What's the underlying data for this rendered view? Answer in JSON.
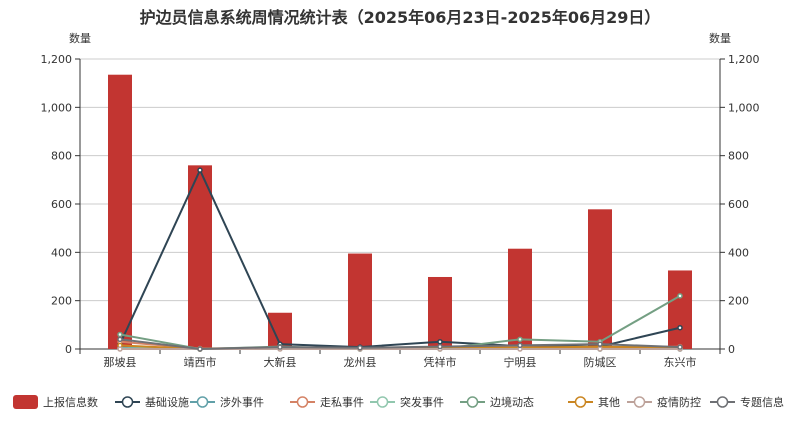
{
  "chart_data": {
    "type": "bar",
    "title": "护边员信息系统周情况统计表（2025年06月23日-2025年06月29日）",
    "ylabel_left": "数量",
    "ylabel_right": "数量",
    "ylim": [
      0,
      1200
    ],
    "yticks": [
      "0",
      "200",
      "400",
      "600",
      "800",
      "1,000",
      "1,200"
    ],
    "categories": [
      "那坡县",
      "靖西市",
      "大新县",
      "龙州县",
      "凭祥市",
      "宁明县",
      "防城区",
      "东兴市"
    ],
    "grid": true,
    "legend_position": "bottom",
    "series": [
      {
        "name": "上报信息数",
        "type": "bar",
        "color": "#c23531",
        "values": [
          1135,
          760,
          150,
          395,
          298,
          415,
          578,
          325
        ]
      },
      {
        "name": "基础设施",
        "type": "line",
        "color": "#2f4554",
        "values": [
          20,
          740,
          20,
          8,
          30,
          12,
          10,
          88
        ]
      },
      {
        "name": "涉外事件",
        "type": "line",
        "color": "#61a0a8",
        "values": [
          5,
          0,
          2,
          0,
          2,
          2,
          0,
          0
        ]
      },
      {
        "name": "走私事件",
        "type": "line",
        "color": "#d48265",
        "values": [
          30,
          2,
          5,
          3,
          5,
          8,
          5,
          10
        ]
      },
      {
        "name": "突发事件",
        "type": "line",
        "color": "#91c7ae",
        "values": [
          2,
          0,
          1,
          0,
          1,
          2,
          0,
          0
        ]
      },
      {
        "name": "边境动态",
        "type": "line",
        "color": "#749f83",
        "values": [
          60,
          0,
          10,
          0,
          0,
          40,
          30,
          220
        ]
      },
      {
        "name": "其他",
        "type": "line",
        "color": "#ca8622",
        "values": [
          15,
          0,
          5,
          2,
          5,
          5,
          10,
          5
        ]
      },
      {
        "name": "疫情防控",
        "type": "line",
        "color": "#bda29a",
        "values": [
          0,
          0,
          0,
          0,
          0,
          0,
          0,
          0
        ]
      },
      {
        "name": "专题信息",
        "type": "line",
        "color": "#6e7074",
        "values": [
          40,
          0,
          8,
          5,
          10,
          15,
          20,
          8
        ]
      }
    ]
  }
}
